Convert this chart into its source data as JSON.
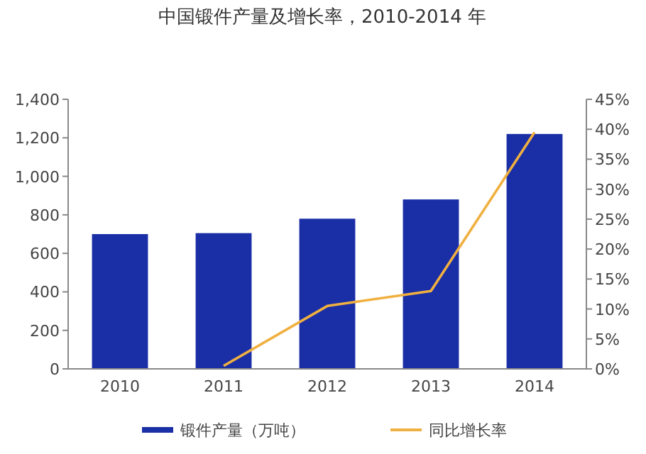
{
  "chart_data": {
    "type": "bar",
    "title": "中国锻件产量及增长率，2010-2014 年",
    "categories": [
      "2010",
      "2011",
      "2012",
      "2013",
      "2014"
    ],
    "series": [
      {
        "name": "锻件产量（万吨）",
        "color": "#1a2ea6",
        "values": [
          700,
          705,
          780,
          880,
          1220
        ]
      },
      {
        "name": "同比增长率",
        "type": "line",
        "axis": "y2",
        "color": "#f0b040",
        "values": [
          null,
          0.5,
          10.5,
          13,
          39.5
        ]
      }
    ],
    "ylim": [
      0,
      1400
    ],
    "yticks": [
      0,
      200,
      400,
      600,
      800,
      {
        "value": 1000,
        "label": "1,000"
      },
      {
        "value": 1200,
        "label": "1,200"
      },
      {
        "value": 1400,
        "label": "1,400"
      }
    ],
    "y2lim": [
      0,
      45
    ],
    "y2ticks": [
      {
        "value": 0,
        "label": "0%"
      },
      {
        "value": 5,
        "label": "5%"
      },
      {
        "value": 10,
        "label": "10%"
      },
      {
        "value": 15,
        "label": "15%"
      },
      {
        "value": 20,
        "label": "20%"
      },
      {
        "value": 25,
        "label": "25%"
      },
      {
        "value": 30,
        "label": "30%"
      },
      {
        "value": 35,
        "label": "35%"
      },
      {
        "value": 40,
        "label": "40%"
      },
      {
        "value": 45,
        "label": "45%"
      }
    ],
    "grid": false,
    "legend": "bottom"
  }
}
